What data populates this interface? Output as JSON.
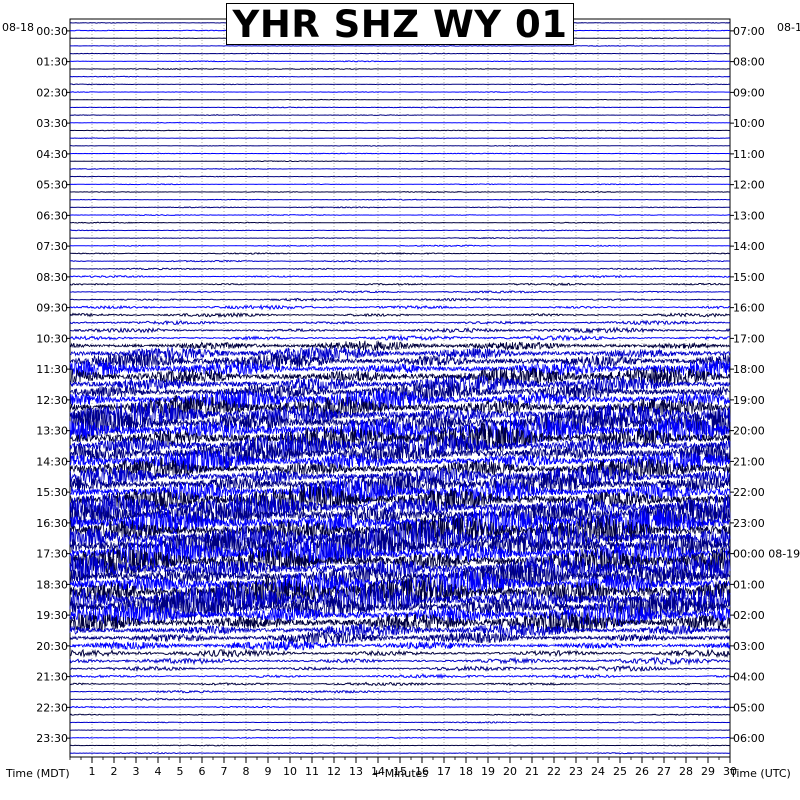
{
  "chart_data": {
    "type": "line",
    "title": "YHR SHZ WY 01",
    "left_corner_date": "08-18",
    "right_corner_date": "08-1",
    "left_axis_label": "Time (MDT)",
    "right_axis_label": "Time (UTC)",
    "x_axis_label": "+ Minutes",
    "x_ticks": [
      1,
      2,
      3,
      4,
      5,
      6,
      7,
      8,
      9,
      10,
      11,
      12,
      13,
      14,
      15,
      16,
      17,
      18,
      19,
      20,
      21,
      22,
      23,
      24,
      25,
      26,
      27,
      28,
      29,
      30
    ],
    "xlim": [
      0,
      30
    ],
    "left_time_labels": [
      "00:30",
      "01:30",
      "02:30",
      "03:30",
      "04:30",
      "05:30",
      "06:30",
      "07:30",
      "08:30",
      "09:30",
      "10:30",
      "11:30",
      "12:30",
      "13:30",
      "14:30",
      "15:30",
      "16:30",
      "17:30",
      "18:30",
      "19:30",
      "20:30",
      "21:30",
      "22:30",
      "23:30"
    ],
    "right_time_labels": [
      "07:00",
      "08:00",
      "09:00",
      "10:00",
      "11:00",
      "12:00",
      "13:00",
      "14:00",
      "15:00",
      "16:00",
      "17:00",
      "18:00",
      "19:00",
      "20:00",
      "21:00",
      "22:00",
      "23:00",
      "00:00 08-19",
      "01:00",
      "02:00",
      "03:00",
      "04:00",
      "05:00",
      "06:00"
    ],
    "trace_colors": [
      "#000080",
      "#0000ff",
      "#000040",
      "#0000cc"
    ],
    "series_amplitude": [
      0.3,
      0.3,
      0.3,
      0.3,
      0.3,
      0.4,
      0.4,
      0.3,
      0.3,
      0.3,
      0.3,
      0.3,
      0.3,
      0.3,
      0.3,
      0.3,
      0.3,
      0.3,
      0.3,
      0.3,
      0.3,
      0.4,
      0.4,
      0.4,
      0.4,
      0.4,
      0.4,
      0.4,
      0.4,
      0.5,
      0.6,
      0.6,
      0.6,
      0.8,
      0.8,
      0.8,
      1.0,
      1.5,
      1.5,
      1.5,
      2,
      2,
      4,
      6,
      7,
      7,
      8,
      8,
      8,
      9,
      10,
      11,
      12,
      13,
      12,
      11,
      10,
      9,
      9,
      9,
      10,
      11,
      12,
      12,
      12,
      13,
      13,
      14,
      14,
      13,
      12,
      12,
      11,
      12,
      14,
      14,
      12,
      10,
      9,
      6,
      5,
      4,
      3,
      2.5,
      2,
      1.5,
      1.2,
      1.0,
      0.8,
      0.6,
      0.5,
      0.5,
      0.5,
      0.4,
      0.4,
      0.4
    ]
  }
}
